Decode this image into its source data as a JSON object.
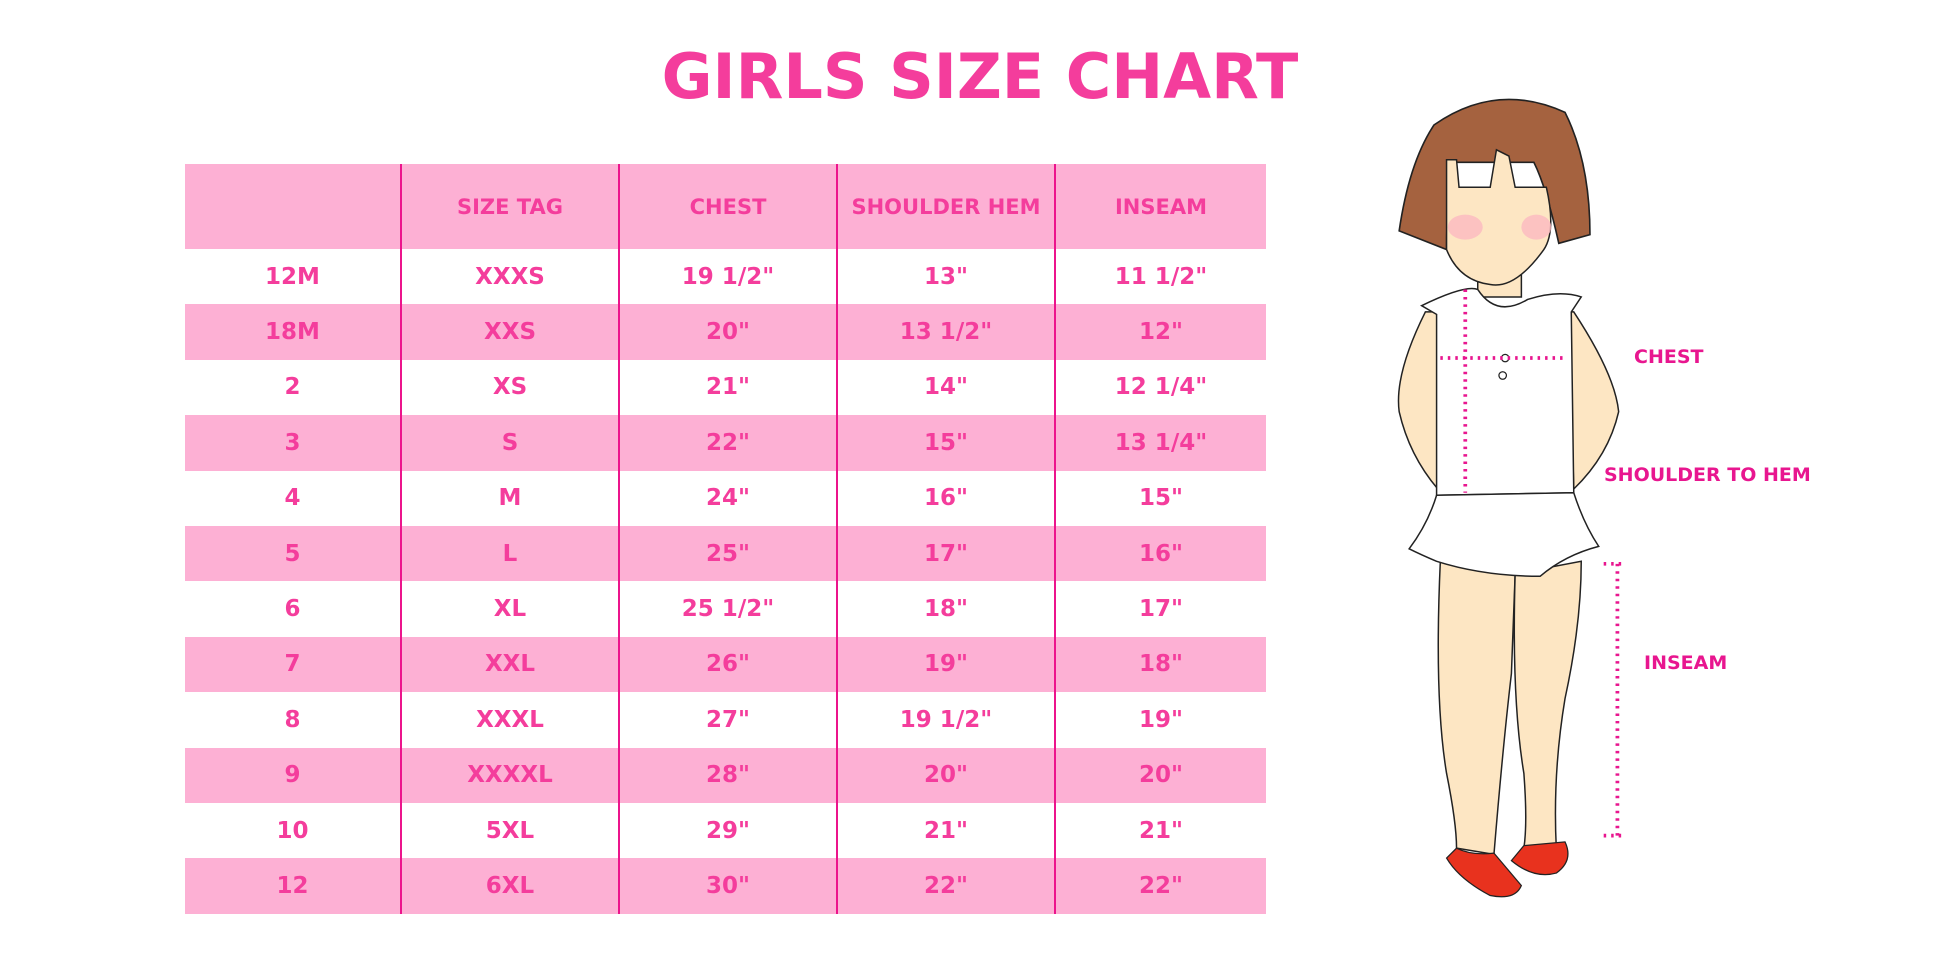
{
  "title": "GIRLS SIZE CHART",
  "table": {
    "headers": [
      "",
      "SIZE TAG",
      "CHEST",
      "SHOULDER HEM",
      "INSEAM"
    ],
    "rows": [
      [
        "12M",
        "XXXS",
        "19 1/2\"",
        "13\"",
        "11 1/2\""
      ],
      [
        "18M",
        "XXS",
        "20\"",
        "13 1/2\"",
        "12\""
      ],
      [
        "2",
        "XS",
        "21\"",
        "14\"",
        "12 1/4\""
      ],
      [
        "3",
        "S",
        "22\"",
        "15\"",
        "13 1/4\""
      ],
      [
        "4",
        "M",
        "24\"",
        "16\"",
        "15\""
      ],
      [
        "5",
        "L",
        "25\"",
        "17\"",
        "16\""
      ],
      [
        "6",
        "XL",
        "25 1/2\"",
        "18\"",
        "17\""
      ],
      [
        "7",
        "XXL",
        "26\"",
        "19\"",
        "18\""
      ],
      [
        "8",
        "XXXL",
        "27\"",
        "19 1/2\"",
        "19\""
      ],
      [
        "9",
        "XXXXL",
        "28\"",
        "20\"",
        "20\""
      ],
      [
        "10",
        "5XL",
        "29\"",
        "21\"",
        "21\""
      ],
      [
        "12",
        "6XL",
        "30\"",
        "22\"",
        "22\""
      ]
    ]
  },
  "figure": {
    "labels": {
      "chest": "CHEST",
      "shoulder": "SHOULDER TO HEM",
      "inseam": "INSEAM"
    }
  },
  "colors": {
    "accent": "#f43d9c",
    "row_pink": "#fdb0d4",
    "divider": "#ec148c",
    "hair": "#a5623f",
    "skin": "#fde6c3",
    "shoes": "#e8321e"
  }
}
